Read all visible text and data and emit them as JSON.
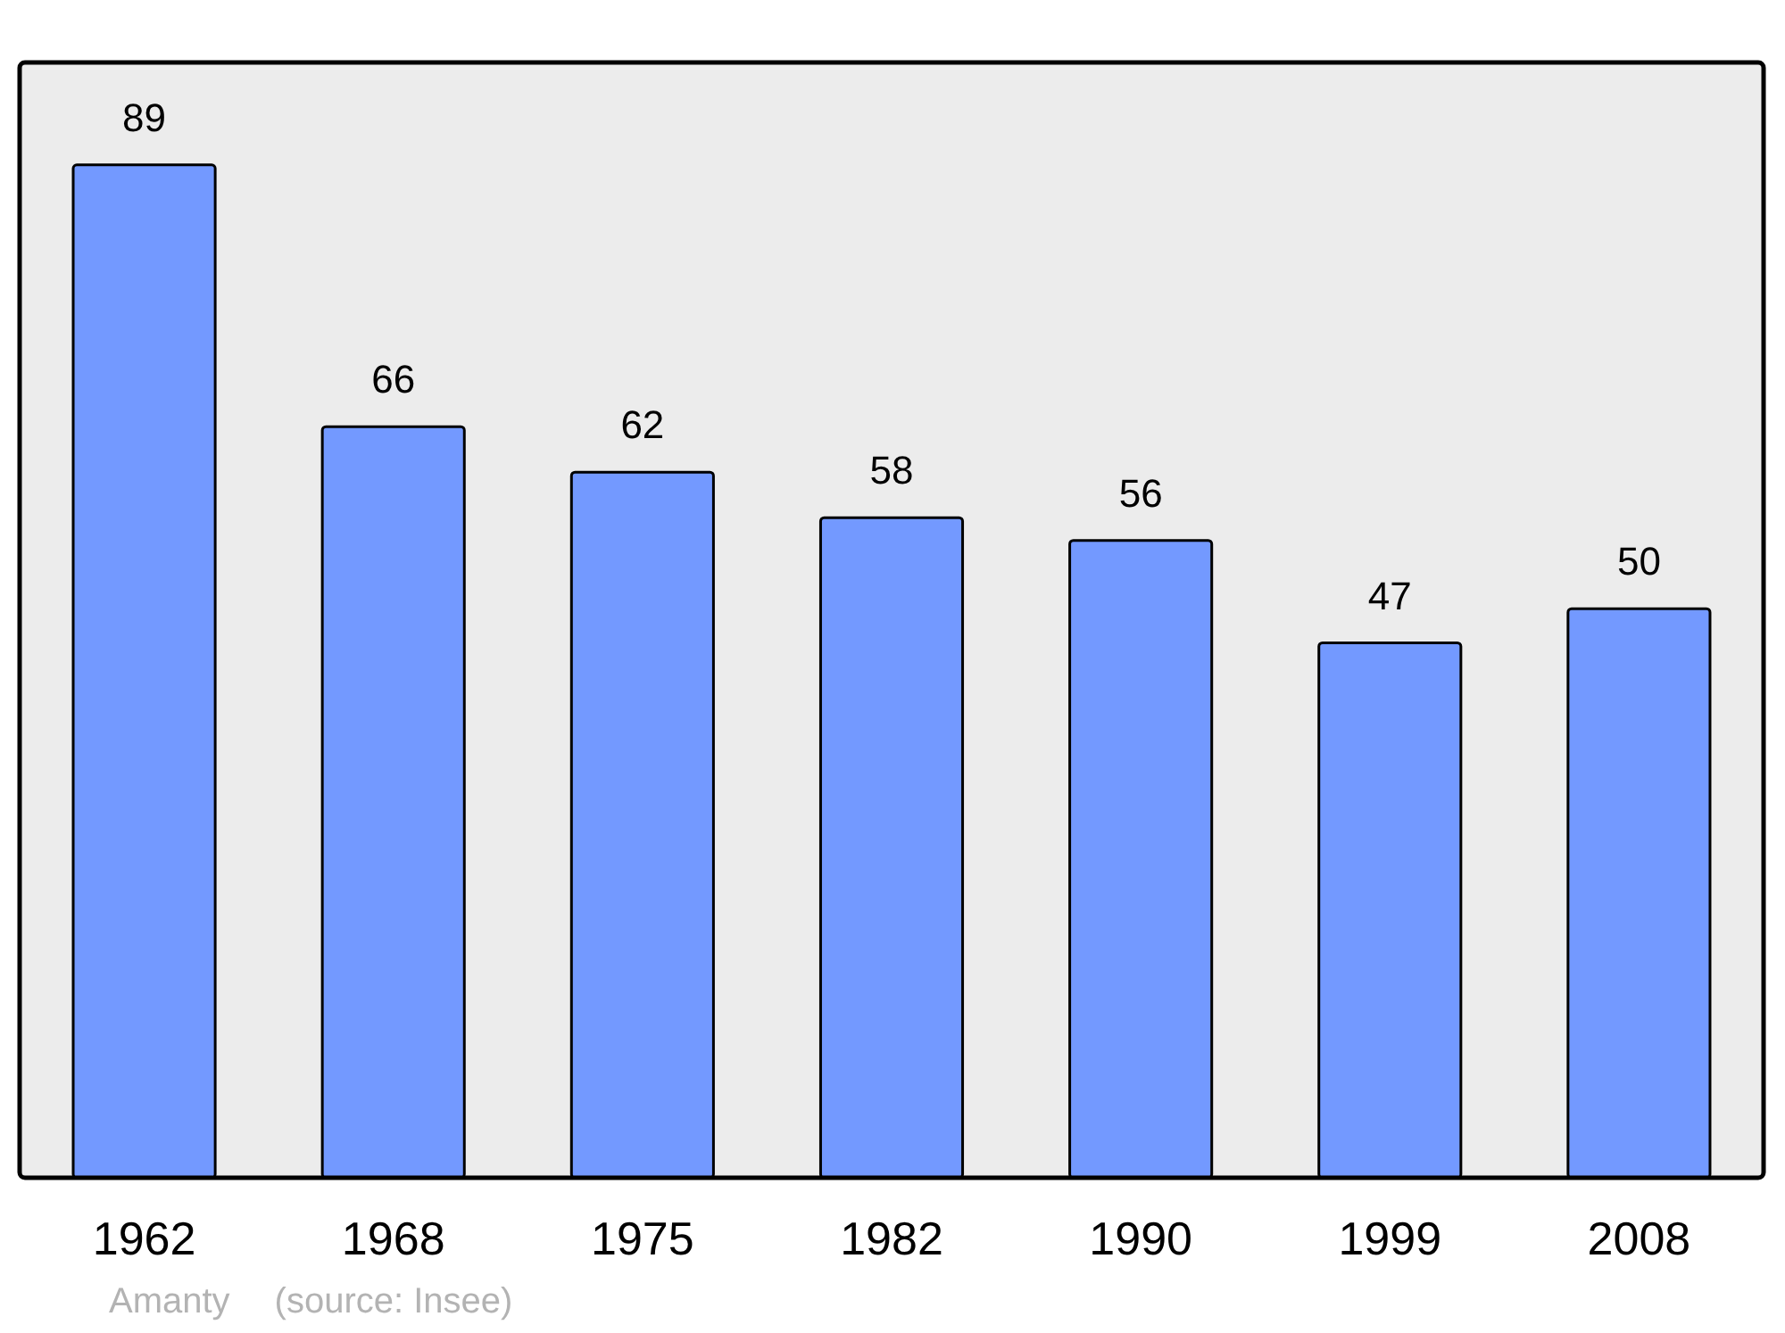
{
  "chart_data": {
    "type": "bar",
    "categories": [
      "1962",
      "1968",
      "1975",
      "1982",
      "1990",
      "1999",
      "2008"
    ],
    "values": [
      89,
      66,
      62,
      58,
      56,
      47,
      50
    ],
    "color": "#7399ff",
    "ylim": [
      0,
      98
    ],
    "tick_labels": "x",
    "data_labels": true,
    "grid": false,
    "legend": false,
    "annotations": [
      "Amanty",
      "(source: Insee)"
    ]
  }
}
